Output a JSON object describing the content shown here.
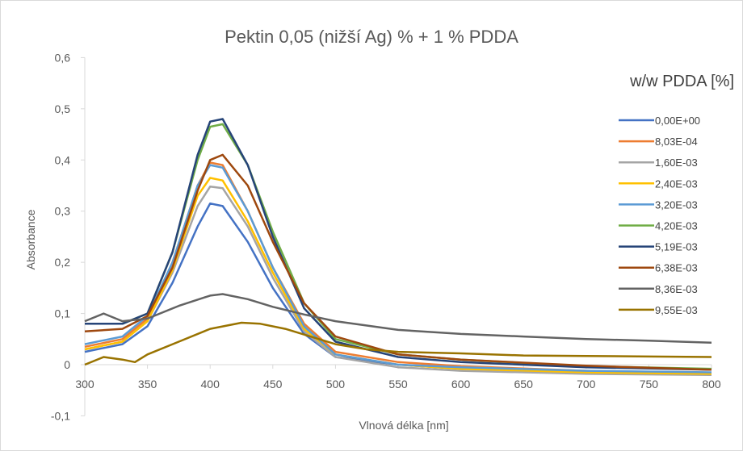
{
  "chart_data": {
    "type": "line",
    "title": "Pektin 0,05 (nižší Ag) % + 1 % PDDA",
    "xlabel": "Vlnová délka [nm]",
    "ylabel": "Absorbance",
    "xlim": [
      300,
      800
    ],
    "ylim": [
      -0.1,
      0.6
    ],
    "x_ticks": [
      "300",
      "350",
      "400",
      "450",
      "500",
      "550",
      "600",
      "650",
      "700",
      "750",
      "800"
    ],
    "y_ticks": [
      "-0,1",
      "0",
      "0,1",
      "0,2",
      "0,3",
      "0,4",
      "0,5",
      "0,6"
    ],
    "grid": false,
    "legend_title": "w/w PDDA [%]",
    "legend_position": "right",
    "series": [
      {
        "name": "0,00E+00",
        "color": "#4472C4",
        "x": [
          300,
          330,
          350,
          370,
          390,
          400,
          410,
          430,
          450,
          475,
          500,
          550,
          600,
          700,
          800
        ],
        "y": [
          0.025,
          0.04,
          0.075,
          0.16,
          0.27,
          0.315,
          0.31,
          0.24,
          0.15,
          0.06,
          0.015,
          0.0,
          -0.008,
          -0.015,
          -0.018
        ]
      },
      {
        "name": "8,03E-04",
        "color": "#ED7D31",
        "x": [
          300,
          330,
          350,
          370,
          390,
          400,
          410,
          430,
          450,
          475,
          500,
          550,
          600,
          700,
          800
        ],
        "y": [
          0.035,
          0.05,
          0.09,
          0.2,
          0.35,
          0.395,
          0.39,
          0.3,
          0.19,
          0.08,
          0.025,
          0.005,
          -0.003,
          -0.012,
          -0.018
        ]
      },
      {
        "name": "1,60E-03",
        "color": "#A5A5A5",
        "x": [
          300,
          330,
          350,
          370,
          390,
          400,
          410,
          430,
          450,
          475,
          500,
          550,
          600,
          700,
          800
        ],
        "y": [
          0.03,
          0.045,
          0.085,
          0.18,
          0.31,
          0.348,
          0.345,
          0.27,
          0.17,
          0.065,
          0.015,
          -0.005,
          -0.012,
          -0.018,
          -0.02
        ]
      },
      {
        "name": "2,40E-03",
        "color": "#FFC000",
        "x": [
          300,
          330,
          350,
          370,
          390,
          400,
          410,
          430,
          450,
          475,
          500,
          550,
          600,
          700,
          800
        ],
        "y": [
          0.03,
          0.045,
          0.085,
          0.185,
          0.33,
          0.365,
          0.36,
          0.28,
          0.18,
          0.07,
          0.02,
          0.0,
          -0.008,
          -0.015,
          -0.018
        ]
      },
      {
        "name": "3,20E-03",
        "color": "#5B9BD5",
        "x": [
          300,
          330,
          350,
          370,
          390,
          400,
          410,
          430,
          450,
          475,
          500,
          550,
          600,
          700,
          800
        ],
        "y": [
          0.04,
          0.055,
          0.095,
          0.2,
          0.35,
          0.39,
          0.385,
          0.3,
          0.19,
          0.075,
          0.02,
          0.0,
          -0.005,
          -0.012,
          -0.015
        ]
      },
      {
        "name": "4,20E-03",
        "color": "#70AD47",
        "x": [
          300,
          330,
          350,
          370,
          390,
          400,
          410,
          430,
          450,
          475,
          500,
          550,
          600,
          700,
          800
        ],
        "y": [
          0.08,
          0.08,
          0.1,
          0.22,
          0.4,
          0.465,
          0.47,
          0.39,
          0.26,
          0.12,
          0.05,
          0.02,
          0.01,
          -0.003,
          -0.008
        ]
      },
      {
        "name": "5,19E-03",
        "color": "#264478",
        "x": [
          300,
          330,
          350,
          370,
          390,
          400,
          410,
          430,
          450,
          475,
          500,
          550,
          600,
          700,
          800
        ],
        "y": [
          0.08,
          0.08,
          0.1,
          0.22,
          0.41,
          0.475,
          0.48,
          0.39,
          0.25,
          0.11,
          0.045,
          0.015,
          0.005,
          -0.005,
          -0.01
        ]
      },
      {
        "name": "6,38E-03",
        "color": "#9E480E",
        "x": [
          300,
          330,
          350,
          370,
          390,
          400,
          410,
          430,
          450,
          475,
          500,
          550,
          600,
          700,
          800
        ],
        "y": [
          0.065,
          0.07,
          0.095,
          0.19,
          0.34,
          0.4,
          0.41,
          0.35,
          0.24,
          0.12,
          0.055,
          0.02,
          0.01,
          -0.002,
          -0.01
        ]
      },
      {
        "name": "8,36E-03",
        "color": "#636363",
        "x": [
          300,
          315,
          330,
          350,
          375,
          400,
          410,
          430,
          450,
          475,
          500,
          550,
          600,
          650,
          700,
          750,
          800
        ],
        "y": [
          0.085,
          0.1,
          0.085,
          0.09,
          0.115,
          0.135,
          0.138,
          0.128,
          0.113,
          0.098,
          0.085,
          0.068,
          0.06,
          0.055,
          0.05,
          0.047,
          0.043
        ]
      },
      {
        "name": "9,55E-03",
        "color": "#997300",
        "x": [
          300,
          315,
          330,
          340,
          350,
          375,
          400,
          425,
          440,
          460,
          480,
          500,
          525,
          550,
          600,
          650,
          700,
          750,
          800
        ],
        "y": [
          0.0,
          0.015,
          0.01,
          0.005,
          0.02,
          0.045,
          0.07,
          0.082,
          0.08,
          0.07,
          0.055,
          0.04,
          0.03,
          0.025,
          0.022,
          0.018,
          0.017,
          0.016,
          0.015
        ]
      }
    ]
  }
}
